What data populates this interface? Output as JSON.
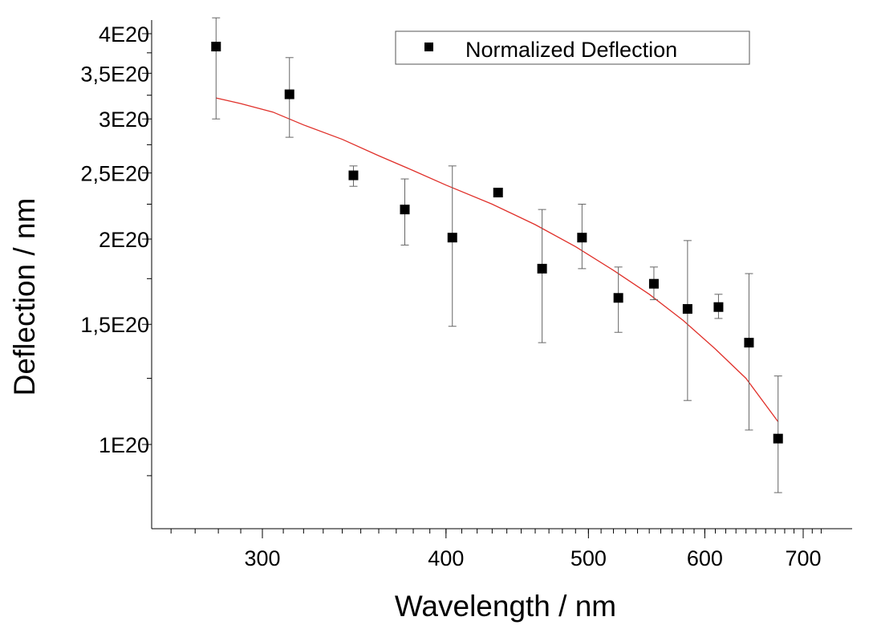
{
  "chart_data": {
    "type": "scatter",
    "title": "",
    "xlabel": "Wavelength / nm",
    "ylabel": "Deflection / nm",
    "x_scale": "log",
    "y_scale": "log",
    "xlim": [
      240,
      730
    ],
    "ylim": [
      8.5e+19,
      4.1e+20
    ],
    "x_ticks": [
      {
        "value": 300,
        "label": "300"
      },
      {
        "value": 400,
        "label": "400"
      },
      {
        "value": 500,
        "label": "500"
      },
      {
        "value": 600,
        "label": "600"
      },
      {
        "value": 700,
        "label": "700"
      }
    ],
    "y_ticks": [
      {
        "value": 1e+20,
        "label": "1E20"
      },
      {
        "value": 1.5e+20,
        "label": "1,5E20"
      },
      {
        "value": 2e+20,
        "label": "2E20"
      },
      {
        "value": 2.5e+20,
        "label": "2,5E20"
      },
      {
        "value": 3e+20,
        "label": "3E20"
      },
      {
        "value": 3.5e+20,
        "label": "3,5E20"
      },
      {
        "value": 4e+20,
        "label": "4E20"
      }
    ],
    "legend": {
      "position": "top-right",
      "entries": [
        "Normalized Deflection"
      ]
    },
    "grid": false,
    "series": [
      {
        "name": "Normalized Deflection",
        "marker": "square",
        "color": "#000000",
        "points": [
          {
            "x": 279,
            "y": 3.83e+20,
            "err_low": 3e+20,
            "err_high": 4.22e+20
          },
          {
            "x": 313,
            "y": 3.26e+20,
            "err_low": 2.82e+20,
            "err_high": 3.69e+20
          },
          {
            "x": 346,
            "y": 2.48e+20,
            "err_low": 2.39e+20,
            "err_high": 2.56e+20
          },
          {
            "x": 375,
            "y": 2.21e+20,
            "err_low": 1.96e+20,
            "err_high": 2.45e+20
          },
          {
            "x": 404,
            "y": 2.01e+20,
            "err_low": 1.49e+20,
            "err_high": 2.56e+20
          },
          {
            "x": 434,
            "y": 2.34e+20,
            "err_low": 2.34e+20,
            "err_high": 2.34e+20
          },
          {
            "x": 465,
            "y": 1.81e+20,
            "err_low": 1.41e+20,
            "err_high": 2.21e+20
          },
          {
            "x": 495,
            "y": 2.01e+20,
            "err_low": 1.81e+20,
            "err_high": 2.25e+20
          },
          {
            "x": 524,
            "y": 1.64e+20,
            "err_low": 1.46e+20,
            "err_high": 1.82e+20
          },
          {
            "x": 554,
            "y": 1.72e+20,
            "err_low": 1.63e+20,
            "err_high": 1.82e+20
          },
          {
            "x": 584,
            "y": 1.58e+20,
            "err_low": 1.16e+20,
            "err_high": 1.99e+20
          },
          {
            "x": 613,
            "y": 1.59e+20,
            "err_low": 1.53e+20,
            "err_high": 1.66e+20
          },
          {
            "x": 643,
            "y": 1.41e+20,
            "err_low": 1.05e+20,
            "err_high": 1.78e+20
          },
          {
            "x": 673,
            "y": 1.02e+20,
            "err_low": 8.5e+19,
            "err_high": 1.26e+20
          }
        ]
      },
      {
        "name": "",
        "type": "line",
        "color": "#e0302a",
        "x": [
          279,
          290,
          305,
          320,
          340,
          360,
          380,
          400,
          430,
          460,
          490,
          520,
          550,
          580,
          610,
          640,
          673
        ],
        "y": [
          3.22e+20,
          3.16e+20,
          3.07e+20,
          2.94e+20,
          2.8e+20,
          2.65e+20,
          2.52e+20,
          2.4e+20,
          2.25e+20,
          2.1e+20,
          1.95e+20,
          1.8e+20,
          1.66e+20,
          1.52e+20,
          1.38e+20,
          1.25e+20,
          1.08e+20
        ]
      }
    ]
  }
}
